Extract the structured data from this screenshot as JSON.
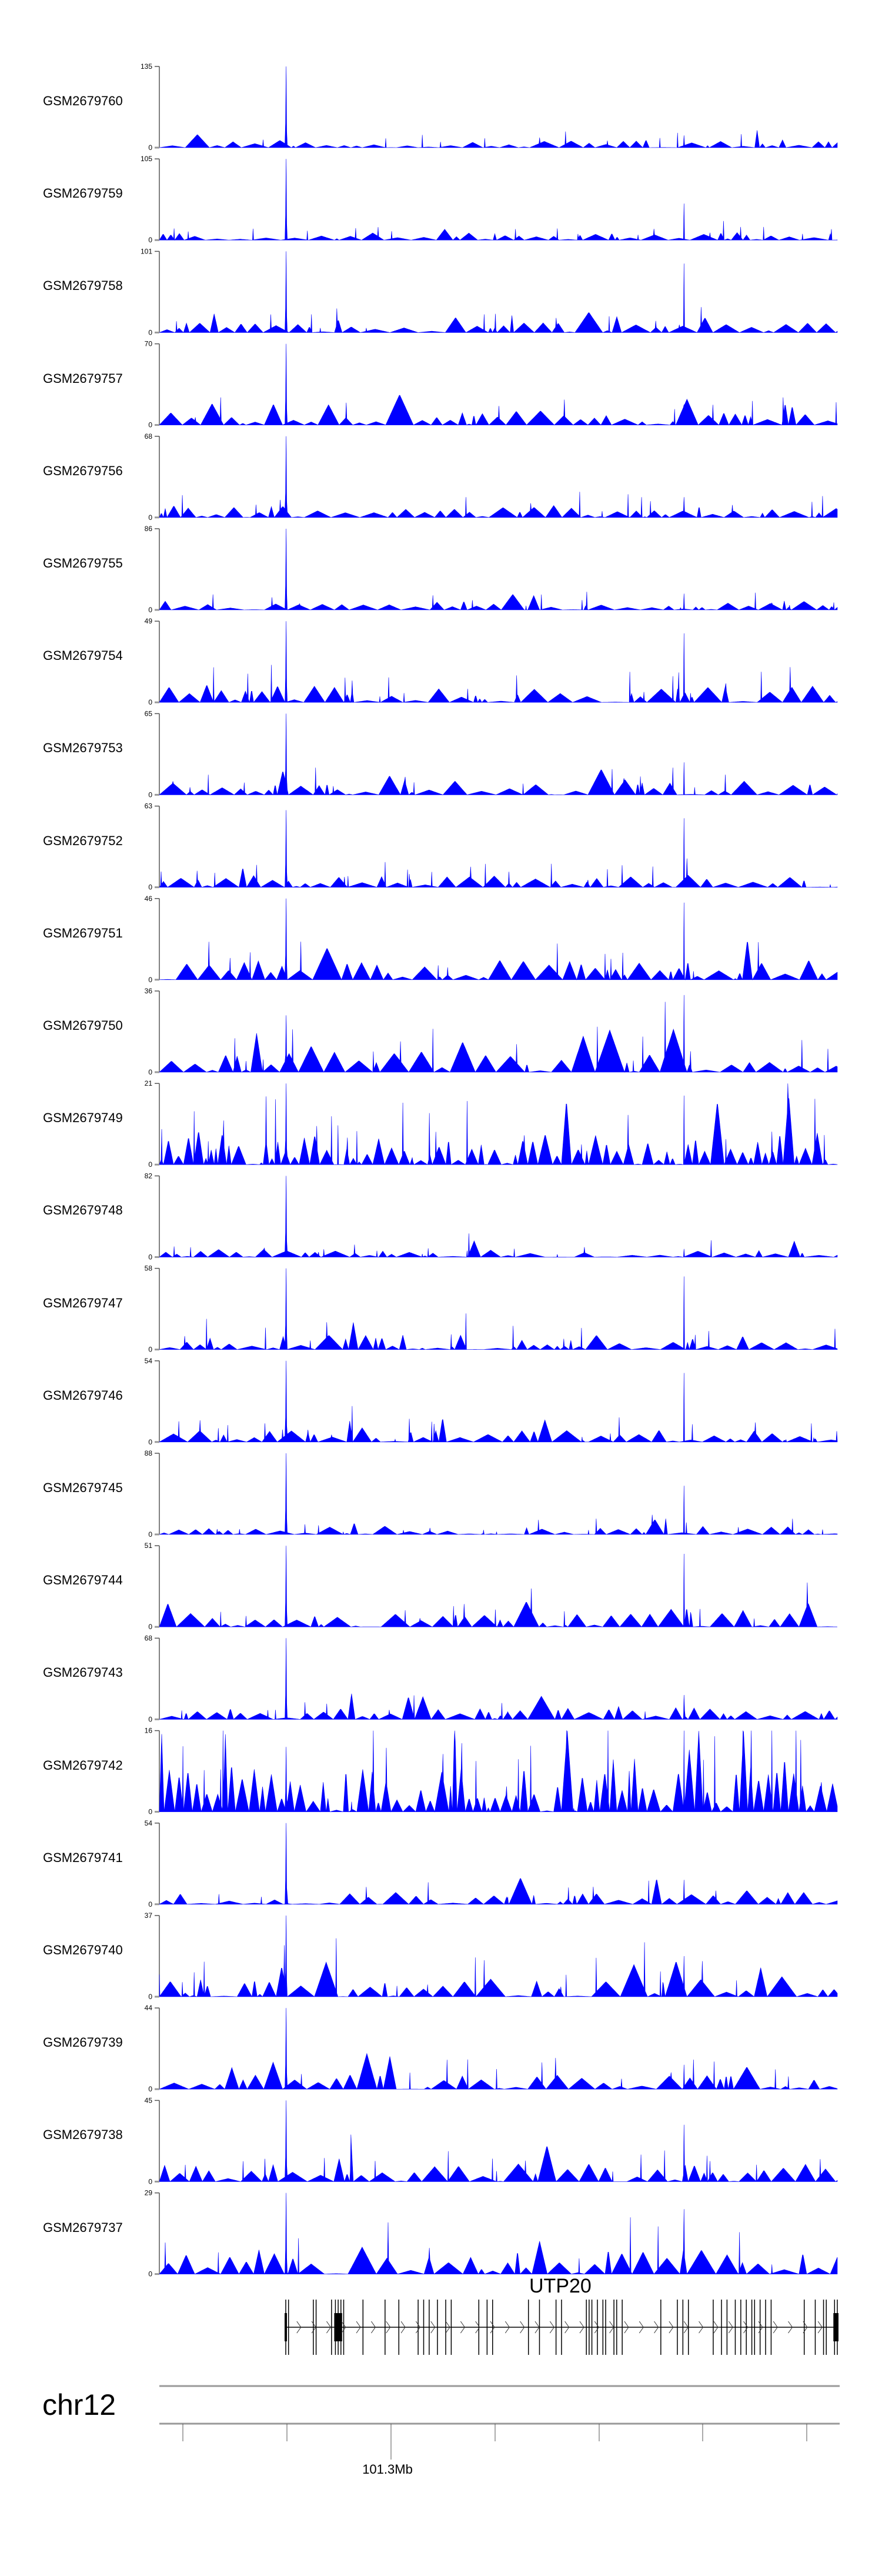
{
  "chart_data": {
    "type": "area",
    "title": "",
    "fill_color": "#0000ff",
    "chromosome": "chr12",
    "gene": {
      "name": "UTP20",
      "strand": "+"
    },
    "axis": {
      "tick_labels": [
        "101.3Mb"
      ]
    },
    "tracks": [
      {
        "name": "GSM2679760",
        "ylim": [
          0,
          135
        ],
        "main_peak": 1.0,
        "second_peak": 0.15,
        "noise": 0.1
      },
      {
        "name": "GSM2679759",
        "ylim": [
          0,
          105
        ],
        "main_peak": 1.0,
        "second_peak": 0.45,
        "noise": 0.1
      },
      {
        "name": "GSM2679758",
        "ylim": [
          0,
          101
        ],
        "main_peak": 1.0,
        "second_peak": 0.85,
        "noise": 0.12
      },
      {
        "name": "GSM2679757",
        "ylim": [
          0,
          70
        ],
        "main_peak": 1.0,
        "second_peak": 0.25,
        "noise": 0.18
      },
      {
        "name": "GSM2679756",
        "ylim": [
          0,
          68
        ],
        "main_peak": 1.0,
        "second_peak": 0.25,
        "noise": 0.15
      },
      {
        "name": "GSM2679755",
        "ylim": [
          0,
          86
        ],
        "main_peak": 1.0,
        "second_peak": 0.2,
        "noise": 0.12
      },
      {
        "name": "GSM2679754",
        "ylim": [
          0,
          49
        ],
        "main_peak": 1.0,
        "second_peak": 0.85,
        "noise": 0.2
      },
      {
        "name": "GSM2679753",
        "ylim": [
          0,
          65
        ],
        "main_peak": 1.0,
        "second_peak": 0.4,
        "noise": 0.15
      },
      {
        "name": "GSM2679752",
        "ylim": [
          0,
          63
        ],
        "main_peak": 0.95,
        "second_peak": 0.85,
        "noise": 0.15
      },
      {
        "name": "GSM2679751",
        "ylim": [
          0,
          46
        ],
        "main_peak": 1.0,
        "second_peak": 0.95,
        "noise": 0.25
      },
      {
        "name": "GSM2679750",
        "ylim": [
          0,
          36
        ],
        "main_peak": 0.7,
        "second_peak": 0.95,
        "noise": 0.25
      },
      {
        "name": "GSM2679749",
        "ylim": [
          0,
          21
        ],
        "main_peak": 1.0,
        "second_peak": 0.85,
        "noise": 0.4
      },
      {
        "name": "GSM2679748",
        "ylim": [
          0,
          82
        ],
        "main_peak": 1.0,
        "second_peak": 0.1,
        "noise": 0.1
      },
      {
        "name": "GSM2679747",
        "ylim": [
          0,
          58
        ],
        "main_peak": 1.0,
        "second_peak": 0.9,
        "noise": 0.18
      },
      {
        "name": "GSM2679746",
        "ylim": [
          0,
          54
        ],
        "main_peak": 1.0,
        "second_peak": 0.85,
        "noise": 0.15
      },
      {
        "name": "GSM2679745",
        "ylim": [
          0,
          88
        ],
        "main_peak": 1.0,
        "second_peak": 0.6,
        "noise": 0.1
      },
      {
        "name": "GSM2679744",
        "ylim": [
          0,
          51
        ],
        "main_peak": 1.0,
        "second_peak": 0.9,
        "noise": 0.18
      },
      {
        "name": "GSM2679743",
        "ylim": [
          0,
          68
        ],
        "main_peak": 1.0,
        "second_peak": 0.3,
        "noise": 0.15
      },
      {
        "name": "GSM2679742",
        "ylim": [
          0,
          16
        ],
        "main_peak": 0.8,
        "second_peak": 1.0,
        "noise": 0.55
      },
      {
        "name": "GSM2679741",
        "ylim": [
          0,
          54
        ],
        "main_peak": 1.0,
        "second_peak": 0.3,
        "noise": 0.15
      },
      {
        "name": "GSM2679740",
        "ylim": [
          0,
          37
        ],
        "main_peak": 1.0,
        "second_peak": 0.5,
        "noise": 0.22
      },
      {
        "name": "GSM2679739",
        "ylim": [
          0,
          44
        ],
        "main_peak": 1.0,
        "second_peak": 0.3,
        "noise": 0.2
      },
      {
        "name": "GSM2679738",
        "ylim": [
          0,
          45
        ],
        "main_peak": 1.0,
        "second_peak": 0.7,
        "noise": 0.22
      },
      {
        "name": "GSM2679737",
        "ylim": [
          0,
          29
        ],
        "main_peak": 1.0,
        "second_peak": 0.8,
        "noise": 0.3
      }
    ]
  }
}
